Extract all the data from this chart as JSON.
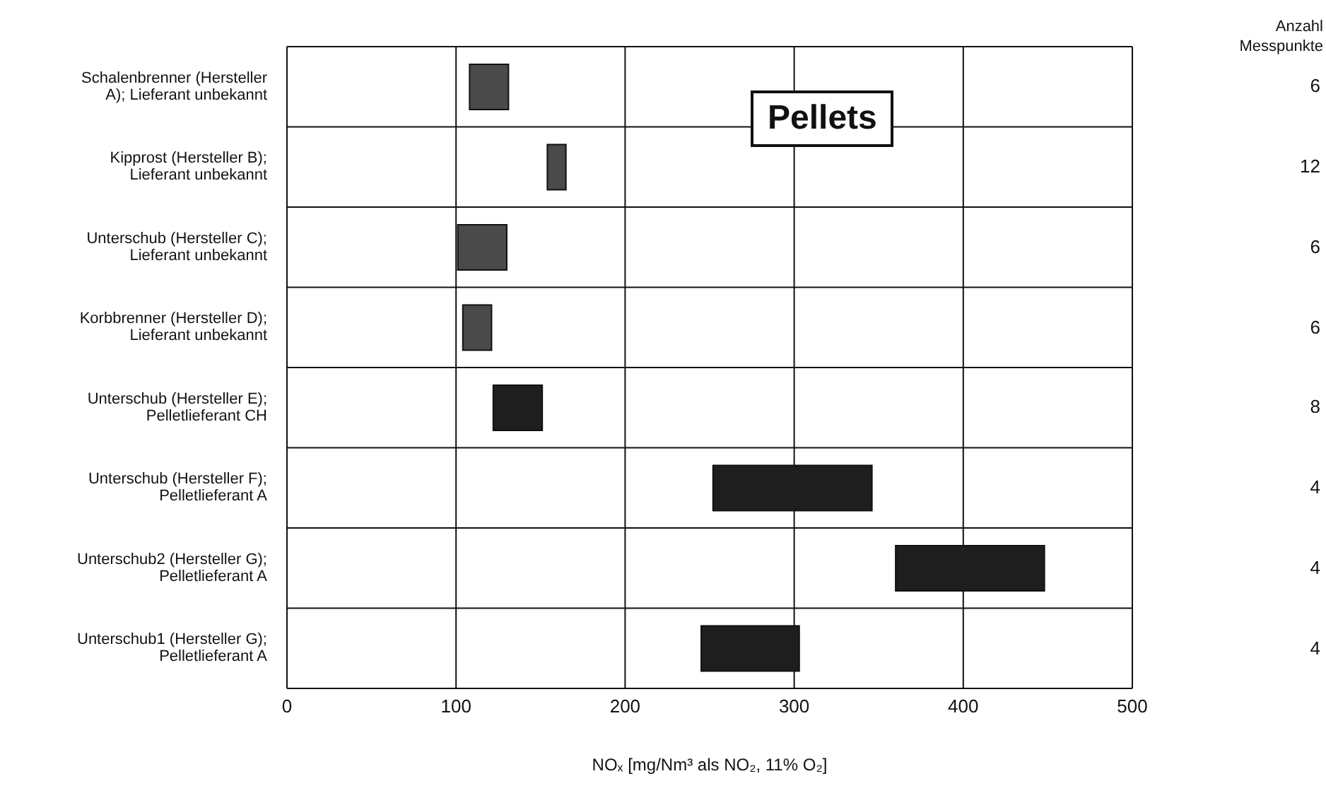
{
  "chart_data": {
    "type": "bar",
    "orientation": "horizontal",
    "categories": [
      "Schalenbrenner (Hersteller A); Lieferant unbekannt",
      "Kipprost (Hersteller B); Lieferant unbekannt",
      "Unterschub (Hersteller C); Lieferant unbekannt",
      "Korbbrenner (Hersteller D); Lieferant unbekannt",
      "Unterschub (Hersteller E); Pelletlieferant CH",
      "Unterschub (Hersteller F); Pelletlieferant A",
      "Unterschub2 (Hersteller G); Pelletlieferant A",
      "Unterschub1 (Hersteller G); Pelletlieferant A"
    ],
    "base": [
      108,
      154,
      101,
      104,
      122,
      252,
      360,
      245
    ],
    "values": [
      23,
      11,
      29,
      17,
      29,
      94,
      88,
      58
    ],
    "colors": [
      "#4a4a4a",
      "#4a4a4a",
      "#4a4a4a",
      "#4a4a4a",
      "#1e1e1e",
      "#1e1e1e",
      "#1e1e1e",
      "#1e1e1e"
    ],
    "xlabel": "NOₓ [mg/Nm³ als NO₂, 11% O₂]",
    "xlim": [
      0,
      500
    ],
    "xticks": [
      0,
      100,
      200,
      300,
      400,
      500
    ],
    "grid": true,
    "annotations": [
      "Pellets",
      "Anzahl Messpunkte",
      "6",
      "12",
      "6",
      "6",
      "8",
      "4",
      "4",
      "4"
    ]
  }
}
